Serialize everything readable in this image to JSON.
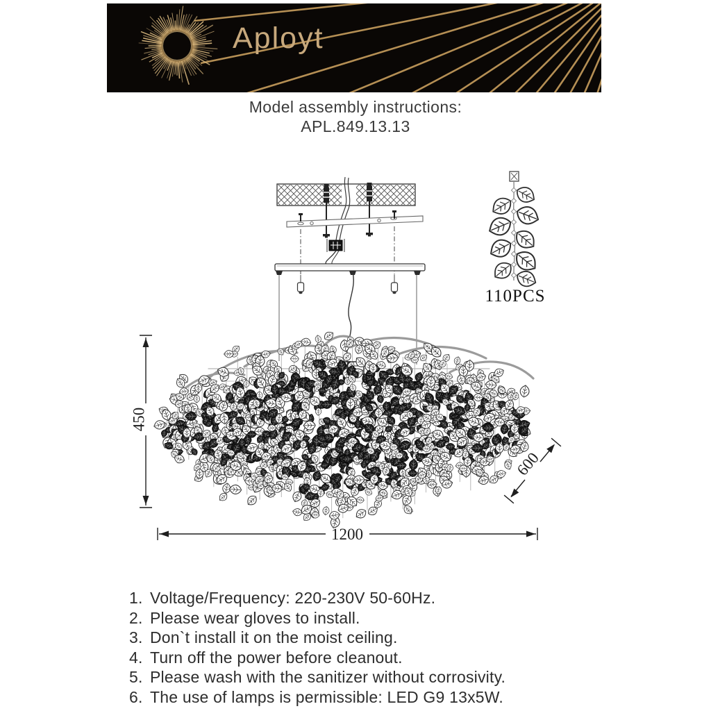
{
  "header": {
    "brand": "Aployt",
    "bg": "#0a0705",
    "gold": "#c7a87c"
  },
  "title": {
    "line1": "Model assembly instructions:",
    "line2": "APL.849.13.13"
  },
  "diagram": {
    "parts_label": "110PCS",
    "dim_height": "450",
    "dim_depth": "600",
    "dim_width": "1200"
  },
  "instructions": {
    "items": [
      {
        "num": "1.",
        "text": "Voltage/Frequency: 220-230V 50-60Hz."
      },
      {
        "num": "2.",
        "text": "Please wear gloves to install."
      },
      {
        "num": "3.",
        "text": "Don`t install it on the moist ceiling."
      },
      {
        "num": "4.",
        "text": "Turn off the power before cleanout."
      },
      {
        "num": "5.",
        "text": "Please wash with the sanitizer without corrosivity."
      },
      {
        "num": "6.",
        "text": "The use of lamps is permissible: LED G9 13x5W."
      }
    ]
  }
}
